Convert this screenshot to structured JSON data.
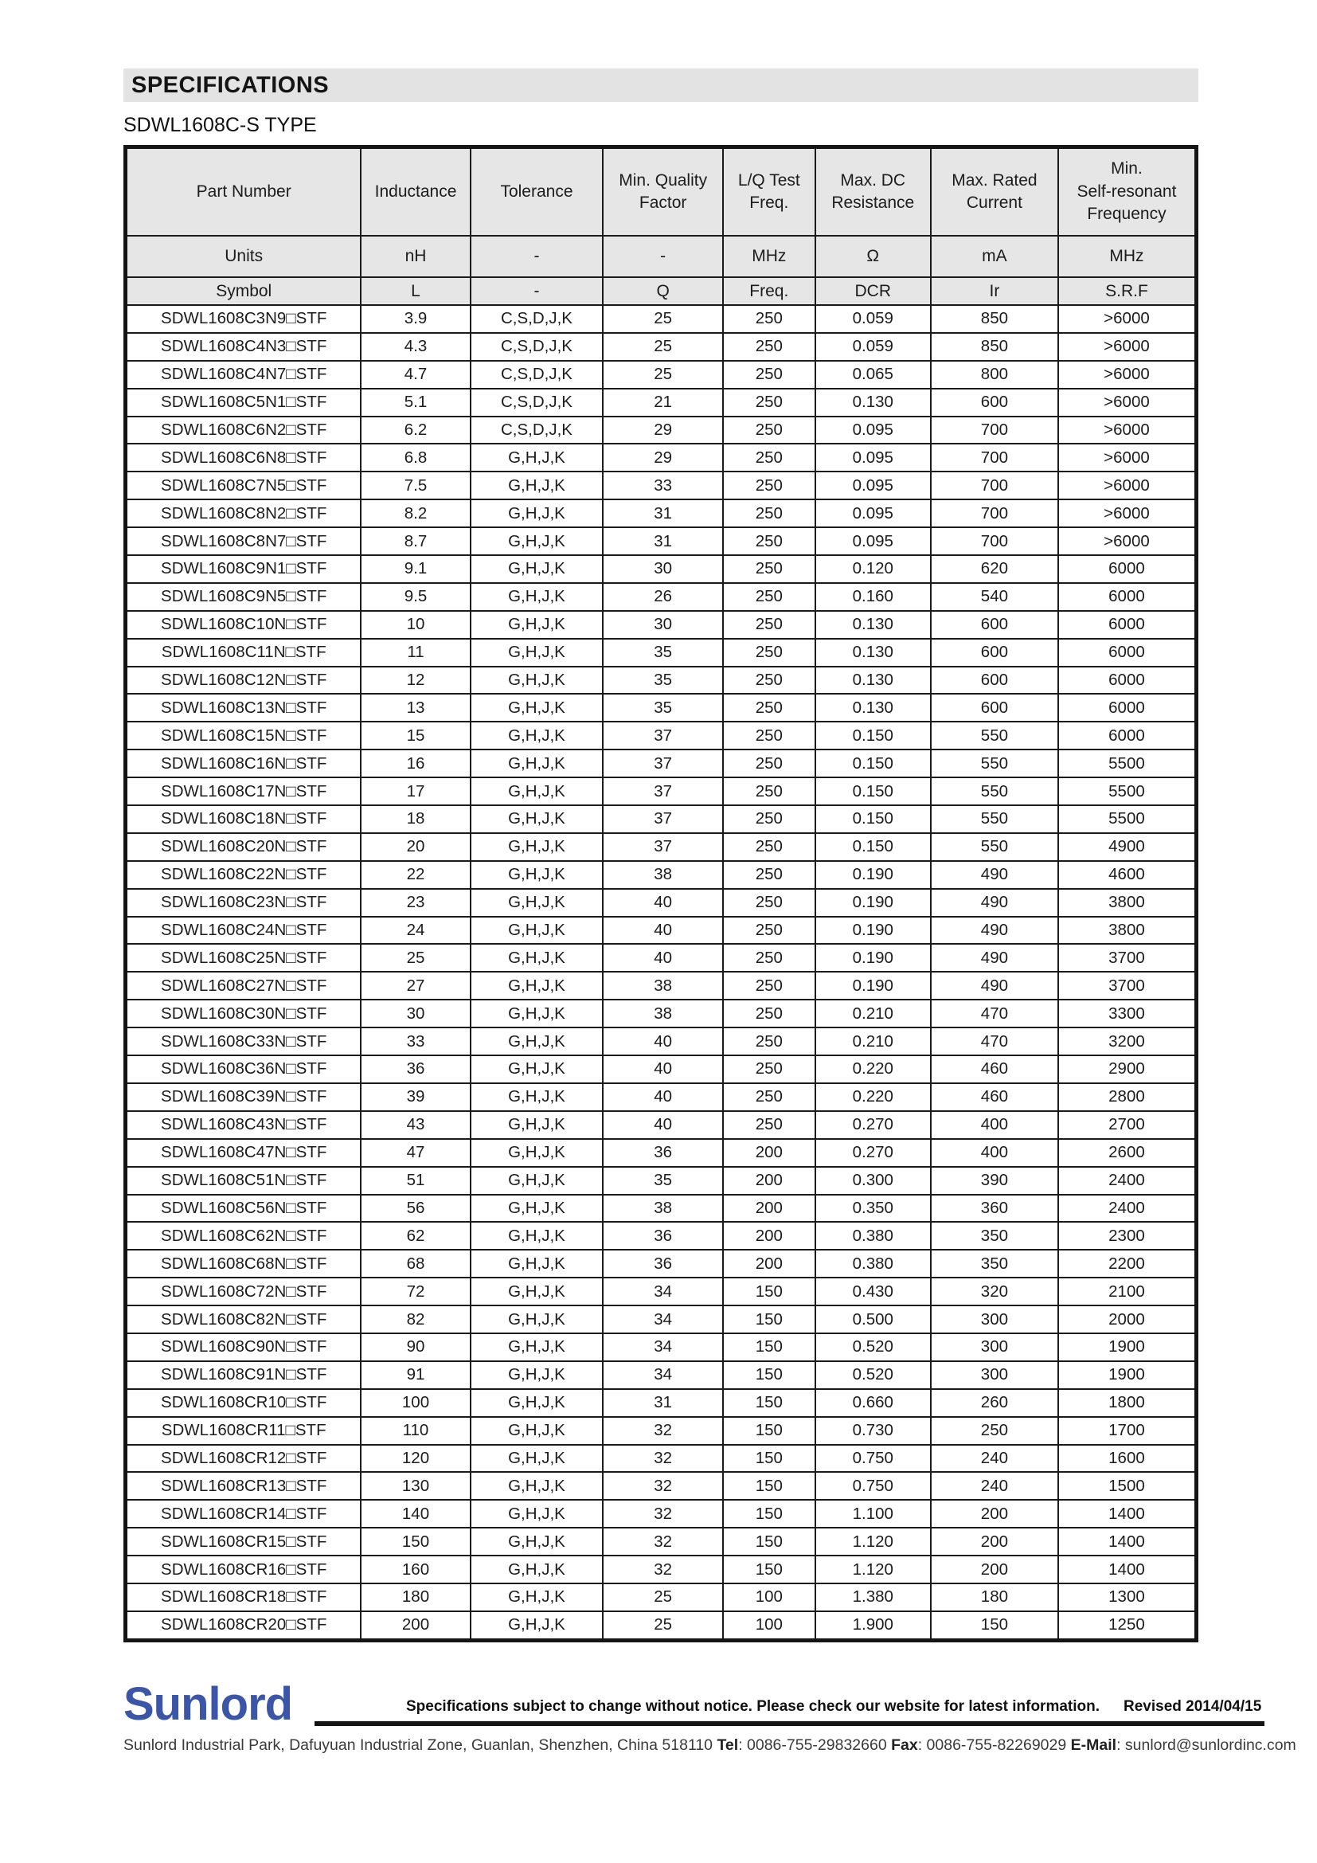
{
  "page": {
    "heading": "SPECIFICATIONS",
    "subtitle": "SDWL1608C-S TYPE"
  },
  "colors": {
    "heading_bar_gray": "#e3e3e3",
    "table_header_gray": "#e6e6e6",
    "logo_blue": "#3b56a8",
    "border_black": "#1b1b1b"
  },
  "table": {
    "columns": [
      "Part Number",
      "Inductance",
      "Tolerance",
      "Min. Quality\nFactor",
      "L/Q Test\nFreq.",
      "Max. DC\nResistance",
      "Max. Rated\nCurrent",
      "Min.\nSelf-resonant\nFrequency"
    ],
    "units_row": [
      "Units",
      "nH",
      "-",
      "-",
      "MHz",
      "Ω",
      "mA",
      "MHz"
    ],
    "symbol_row": [
      "Symbol",
      "L",
      "-",
      "Q",
      "Freq.",
      "DCR",
      "Ir",
      "S.R.F"
    ],
    "rows": [
      [
        "SDWL1608C3N9□STF",
        "3.9",
        "C,S,D,J,K",
        "25",
        "250",
        "0.059",
        "850",
        ">6000"
      ],
      [
        "SDWL1608C4N3□STF",
        "4.3",
        "C,S,D,J,K",
        "25",
        "250",
        "0.059",
        "850",
        ">6000"
      ],
      [
        "SDWL1608C4N7□STF",
        "4.7",
        "C,S,D,J,K",
        "25",
        "250",
        "0.065",
        "800",
        ">6000"
      ],
      [
        "SDWL1608C5N1□STF",
        "5.1",
        "C,S,D,J,K",
        "21",
        "250",
        "0.130",
        "600",
        ">6000"
      ],
      [
        "SDWL1608C6N2□STF",
        "6.2",
        "C,S,D,J,K",
        "29",
        "250",
        "0.095",
        "700",
        ">6000"
      ],
      [
        "SDWL1608C6N8□STF",
        "6.8",
        "G,H,J,K",
        "29",
        "250",
        "0.095",
        "700",
        ">6000"
      ],
      [
        "SDWL1608C7N5□STF",
        "7.5",
        "G,H,J,K",
        "33",
        "250",
        "0.095",
        "700",
        ">6000"
      ],
      [
        "SDWL1608C8N2□STF",
        "8.2",
        "G,H,J,K",
        "31",
        "250",
        "0.095",
        "700",
        ">6000"
      ],
      [
        "SDWL1608C8N7□STF",
        "8.7",
        "G,H,J,K",
        "31",
        "250",
        "0.095",
        "700",
        ">6000"
      ],
      [
        "SDWL1608C9N1□STF",
        "9.1",
        "G,H,J,K",
        "30",
        "250",
        "0.120",
        "620",
        "6000"
      ],
      [
        "SDWL1608C9N5□STF",
        "9.5",
        "G,H,J,K",
        "26",
        "250",
        "0.160",
        "540",
        "6000"
      ],
      [
        "SDWL1608C10N□STF",
        "10",
        "G,H,J,K",
        "30",
        "250",
        "0.130",
        "600",
        "6000"
      ],
      [
        "SDWL1608C11N□STF",
        "11",
        "G,H,J,K",
        "35",
        "250",
        "0.130",
        "600",
        "6000"
      ],
      [
        "SDWL1608C12N□STF",
        "12",
        "G,H,J,K",
        "35",
        "250",
        "0.130",
        "600",
        "6000"
      ],
      [
        "SDWL1608C13N□STF",
        "13",
        "G,H,J,K",
        "35",
        "250",
        "0.130",
        "600",
        "6000"
      ],
      [
        "SDWL1608C15N□STF",
        "15",
        "G,H,J,K",
        "37",
        "250",
        "0.150",
        "550",
        "6000"
      ],
      [
        "SDWL1608C16N□STF",
        "16",
        "G,H,J,K",
        "37",
        "250",
        "0.150",
        "550",
        "5500"
      ],
      [
        "SDWL1608C17N□STF",
        "17",
        "G,H,J,K",
        "37",
        "250",
        "0.150",
        "550",
        "5500"
      ],
      [
        "SDWL1608C18N□STF",
        "18",
        "G,H,J,K",
        "37",
        "250",
        "0.150",
        "550",
        "5500"
      ],
      [
        "SDWL1608C20N□STF",
        "20",
        "G,H,J,K",
        "37",
        "250",
        "0.150",
        "550",
        "4900"
      ],
      [
        "SDWL1608C22N□STF",
        "22",
        "G,H,J,K",
        "38",
        "250",
        "0.190",
        "490",
        "4600"
      ],
      [
        "SDWL1608C23N□STF",
        "23",
        "G,H,J,K",
        "40",
        "250",
        "0.190",
        "490",
        "3800"
      ],
      [
        "SDWL1608C24N□STF",
        "24",
        "G,H,J,K",
        "40",
        "250",
        "0.190",
        "490",
        "3800"
      ],
      [
        "SDWL1608C25N□STF",
        "25",
        "G,H,J,K",
        "40",
        "250",
        "0.190",
        "490",
        "3700"
      ],
      [
        "SDWL1608C27N□STF",
        "27",
        "G,H,J,K",
        "38",
        "250",
        "0.190",
        "490",
        "3700"
      ],
      [
        "SDWL1608C30N□STF",
        "30",
        "G,H,J,K",
        "38",
        "250",
        "0.210",
        "470",
        "3300"
      ],
      [
        "SDWL1608C33N□STF",
        "33",
        "G,H,J,K",
        "40",
        "250",
        "0.210",
        "470",
        "3200"
      ],
      [
        "SDWL1608C36N□STF",
        "36",
        "G,H,J,K",
        "40",
        "250",
        "0.220",
        "460",
        "2900"
      ],
      [
        "SDWL1608C39N□STF",
        "39",
        "G,H,J,K",
        "40",
        "250",
        "0.220",
        "460",
        "2800"
      ],
      [
        "SDWL1608C43N□STF",
        "43",
        "G,H,J,K",
        "40",
        "250",
        "0.270",
        "400",
        "2700"
      ],
      [
        "SDWL1608C47N□STF",
        "47",
        "G,H,J,K",
        "36",
        "200",
        "0.270",
        "400",
        "2600"
      ],
      [
        "SDWL1608C51N□STF",
        "51",
        "G,H,J,K",
        "35",
        "200",
        "0.300",
        "390",
        "2400"
      ],
      [
        "SDWL1608C56N□STF",
        "56",
        "G,H,J,K",
        "38",
        "200",
        "0.350",
        "360",
        "2400"
      ],
      [
        "SDWL1608C62N□STF",
        "62",
        "G,H,J,K",
        "36",
        "200",
        "0.380",
        "350",
        "2300"
      ],
      [
        "SDWL1608C68N□STF",
        "68",
        "G,H,J,K",
        "36",
        "200",
        "0.380",
        "350",
        "2200"
      ],
      [
        "SDWL1608C72N□STF",
        "72",
        "G,H,J,K",
        "34",
        "150",
        "0.430",
        "320",
        "2100"
      ],
      [
        "SDWL1608C82N□STF",
        "82",
        "G,H,J,K",
        "34",
        "150",
        "0.500",
        "300",
        "2000"
      ],
      [
        "SDWL1608C90N□STF",
        "90",
        "G,H,J,K",
        "34",
        "150",
        "0.520",
        "300",
        "1900"
      ],
      [
        "SDWL1608C91N□STF",
        "91",
        "G,H,J,K",
        "34",
        "150",
        "0.520",
        "300",
        "1900"
      ],
      [
        "SDWL1608CR10□STF",
        "100",
        "G,H,J,K",
        "31",
        "150",
        "0.660",
        "260",
        "1800"
      ],
      [
        "SDWL1608CR11□STF",
        "110",
        "G,H,J,K",
        "32",
        "150",
        "0.730",
        "250",
        "1700"
      ],
      [
        "SDWL1608CR12□STF",
        "120",
        "G,H,J,K",
        "32",
        "150",
        "0.750",
        "240",
        "1600"
      ],
      [
        "SDWL1608CR13□STF",
        "130",
        "G,H,J,K",
        "32",
        "150",
        "0.750",
        "240",
        "1500"
      ],
      [
        "SDWL1608CR14□STF",
        "140",
        "G,H,J,K",
        "32",
        "150",
        "1.100",
        "200",
        "1400"
      ],
      [
        "SDWL1608CR15□STF",
        "150",
        "G,H,J,K",
        "32",
        "150",
        "1.120",
        "200",
        "1400"
      ],
      [
        "SDWL1608CR16□STF",
        "160",
        "G,H,J,K",
        "32",
        "150",
        "1.120",
        "200",
        "1400"
      ],
      [
        "SDWL1608CR18□STF",
        "180",
        "G,H,J,K",
        "25",
        "100",
        "1.380",
        "180",
        "1300"
      ],
      [
        "SDWL1608CR20□STF",
        "200",
        "G,H,J,K",
        "25",
        "100",
        "1.900",
        "150",
        "1250"
      ]
    ]
  },
  "footer": {
    "logo_text": "Sunlord",
    "notice": "Specifications subject to change without notice. Please check our website for latest information.",
    "revised": "Revised 2014/04/15",
    "address": "Sunlord Industrial Park, Dafuyuan Industrial Zone, Guanlan, Shenzhen, China 518110 ",
    "tel_label": "Tel",
    "tel_value": ": 0086-755-29832660 ",
    "fax_label": "Fax",
    "fax_value": ": 0086-755-82269029 ",
    "email_label": "E-Mail",
    "email_value": ": sunlord@sunlordinc.com"
  }
}
